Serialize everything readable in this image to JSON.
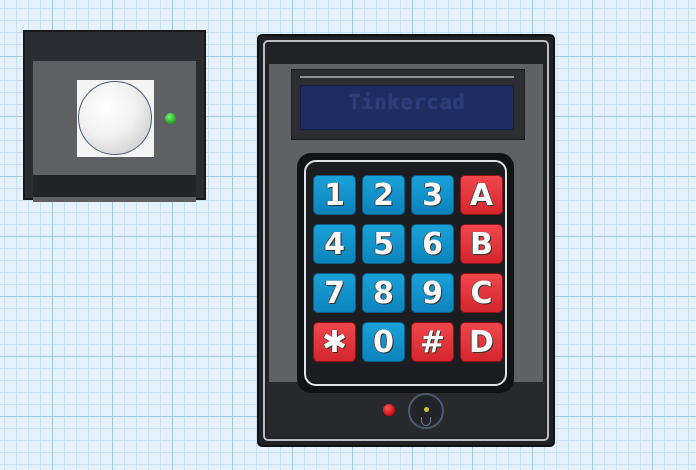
{
  "lcd": {
    "text": "Tinkercad"
  },
  "keypad": {
    "rows": [
      [
        "1",
        "2",
        "3",
        "A"
      ],
      [
        "4",
        "5",
        "6",
        "B"
      ],
      [
        "7",
        "8",
        "9",
        "C"
      ],
      [
        "✱",
        "0",
        "#",
        "D"
      ]
    ],
    "key_kinds": [
      [
        "num",
        "num",
        "num",
        "fn"
      ],
      [
        "num",
        "num",
        "num",
        "fn"
      ],
      [
        "num",
        "num",
        "num",
        "fn"
      ],
      [
        "fn",
        "num",
        "fn",
        "fn"
      ]
    ]
  },
  "colors": {
    "grid_background": "#e4f1fb",
    "key_blue": "#1aa0d8",
    "key_red": "#e8353b",
    "lcd_blue": "#1f2c62",
    "led_green": "#1ea61e",
    "led_red": "#c50a0a"
  },
  "icons": {
    "pir_dome": "pir-sensor-dome-icon",
    "status_led": "status-led-icon",
    "light_sensor": "light-sensor-icon"
  }
}
